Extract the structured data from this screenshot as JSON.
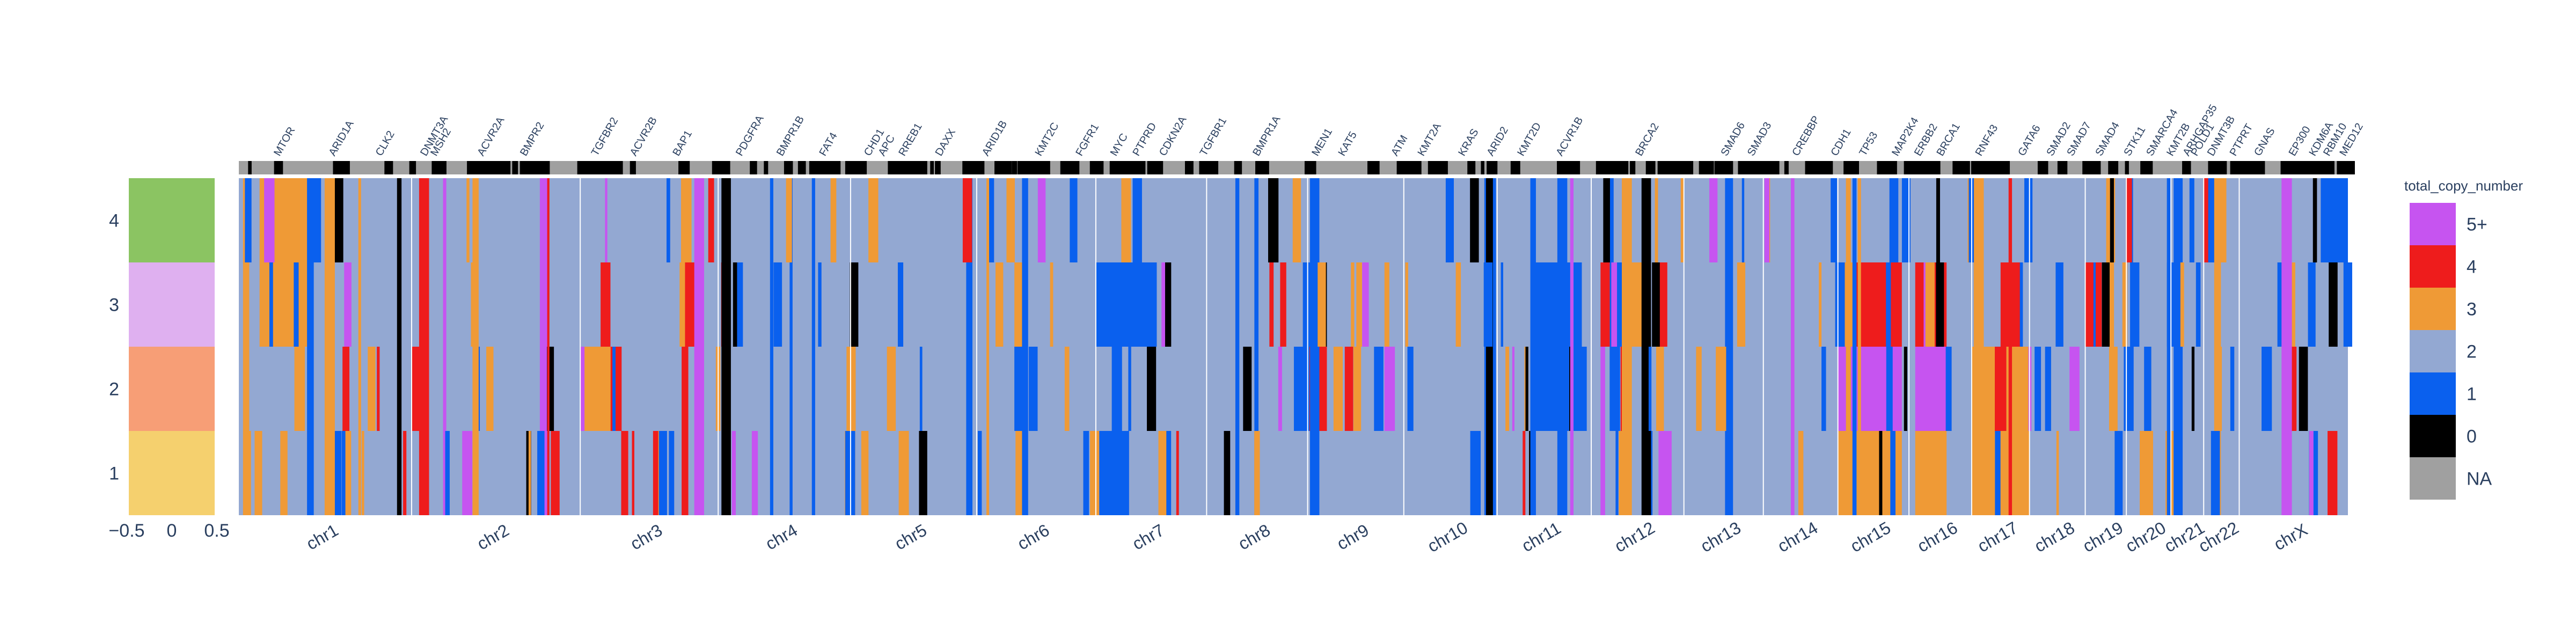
{
  "chart_data": {
    "type": "heatmap",
    "title": "",
    "legend": {
      "title": "total_copy_number",
      "placement": "right",
      "entries": [
        {
          "label": "5+",
          "color": "#c654f0"
        },
        {
          "label": "4",
          "color": "#ee1c1c"
        },
        {
          "label": "3",
          "color": "#ef9a36"
        },
        {
          "label": "2",
          "color": "#93a8d2"
        },
        {
          "label": "1",
          "color": "#0a60ee"
        },
        {
          "label": "0",
          "color": "#000000"
        },
        {
          "label": "NA",
          "color": "#a0a0a0"
        }
      ]
    },
    "cluster_panel": {
      "x_ticks": [
        "−0.5",
        "0",
        "0.5"
      ],
      "row_labels": [
        "4",
        "3",
        "2",
        "1"
      ],
      "row_colors": [
        "#8bc462",
        "#dfb0f0",
        "#f79e76",
        "#f5d06e"
      ]
    },
    "chromosomes": [
      "chr1",
      "chr2",
      "chr3",
      "chr4",
      "chr5",
      "chr6",
      "chr7",
      "chr8",
      "chr9",
      "chr10",
      "chr11",
      "chr12",
      "chr13",
      "chr14",
      "chr15",
      "chr16",
      "chr17",
      "chr18",
      "chr19",
      "chr20",
      "chr21",
      "chr22",
      "chrX"
    ],
    "chromosome_widths": [
      248,
      242,
      198,
      190,
      181,
      171,
      159,
      145,
      138,
      134,
      135,
      133,
      114,
      107,
      102,
      90,
      83,
      80,
      59,
      64,
      47,
      51,
      156
    ],
    "genes": [
      {
        "name": "MTOR",
        "pos": 0.02
      },
      {
        "name": "ARID1A",
        "pos": 0.047
      },
      {
        "name": "CLK2",
        "pos": 0.07
      },
      {
        "name": "DNMT3A",
        "pos": 0.092
      },
      {
        "name": "MSH2",
        "pos": 0.097
      },
      {
        "name": "ACVR2A",
        "pos": 0.12
      },
      {
        "name": "BMPR2",
        "pos": 0.141
      },
      {
        "name": "TGFBR2",
        "pos": 0.176
      },
      {
        "name": "ACVR2B",
        "pos": 0.195
      },
      {
        "name": "BAP1",
        "pos": 0.216
      },
      {
        "name": "PDGFRA",
        "pos": 0.247
      },
      {
        "name": "BMPR1B",
        "pos": 0.267
      },
      {
        "name": "FAT4",
        "pos": 0.288
      },
      {
        "name": "CHD1",
        "pos": 0.31
      },
      {
        "name": "APC",
        "pos": 0.317
      },
      {
        "name": "RREB1",
        "pos": 0.327
      },
      {
        "name": "DAXX",
        "pos": 0.345
      },
      {
        "name": "ARID1B",
        "pos": 0.368
      },
      {
        "name": "KMT2C",
        "pos": 0.394
      },
      {
        "name": "FGFR1",
        "pos": 0.414
      },
      {
        "name": "MYC",
        "pos": 0.431
      },
      {
        "name": "PTPRD",
        "pos": 0.442
      },
      {
        "name": "CDKN2A",
        "pos": 0.455
      },
      {
        "name": "TGFBR1",
        "pos": 0.475
      },
      {
        "name": "BMPR1A",
        "pos": 0.501
      },
      {
        "name": "MEN1",
        "pos": 0.53
      },
      {
        "name": "KAT5",
        "pos": 0.543
      },
      {
        "name": "ATM",
        "pos": 0.569
      },
      {
        "name": "KMT2A",
        "pos": 0.582
      },
      {
        "name": "KRAS",
        "pos": 0.602
      },
      {
        "name": "ARID2",
        "pos": 0.616
      },
      {
        "name": "KMT2D",
        "pos": 0.631
      },
      {
        "name": "ACVR1B",
        "pos": 0.65
      },
      {
        "name": "BRCA2",
        "pos": 0.689
      },
      {
        "name": "SMAD6",
        "pos": 0.731
      },
      {
        "name": "SMAD3",
        "pos": 0.744
      },
      {
        "name": "CREBBP",
        "pos": 0.766
      },
      {
        "name": "CDH1",
        "pos": 0.785
      },
      {
        "name": "TP53",
        "pos": 0.799
      },
      {
        "name": "MAP2K4",
        "pos": 0.815
      },
      {
        "name": "ERBB2",
        "pos": 0.826
      },
      {
        "name": "BRCA1",
        "pos": 0.837
      },
      {
        "name": "RNF43",
        "pos": 0.856
      },
      {
        "name": "GATA6",
        "pos": 0.877
      },
      {
        "name": "SMAD2",
        "pos": 0.891
      },
      {
        "name": "SMAD7",
        "pos": 0.901
      },
      {
        "name": "SMAD4",
        "pos": 0.915
      },
      {
        "name": "STK11",
        "pos": 0.929
      },
      {
        "name": "SMARCA4",
        "pos": 0.94
      },
      {
        "name": "KMT2B",
        "pos": 0.95
      },
      {
        "name": "ARHGAP35",
        "pos": 0.958
      },
      {
        "name": "POLD1",
        "pos": 0.962
      },
      {
        "name": "DNMT3B",
        "pos": 0.97
      },
      {
        "name": "PTPRT",
        "pos": 0.981
      },
      {
        "name": "GNAS",
        "pos": 0.993
      },
      {
        "name": "EP300",
        "pos": 1.01
      },
      {
        "name": "KDM6A",
        "pos": 1.02
      },
      {
        "name": "RBM10",
        "pos": 1.027
      },
      {
        "name": "MED12",
        "pos": 1.035
      }
    ]
  }
}
